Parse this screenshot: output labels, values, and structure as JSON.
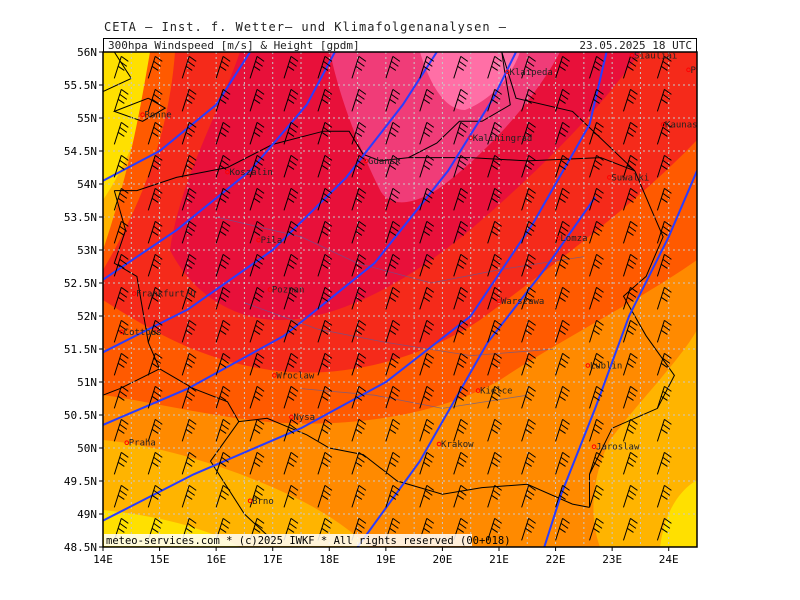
{
  "title": "CETA — Inst. f. Wetter— und Klimafolgenanalysen —",
  "header": {
    "parameter": "300hpa Windspeed [m/s] & Height [gpdm]",
    "datetime": "23.05.2025 18 UTC"
  },
  "footer": "meteo-services.com * (c)2025 IWKF * All rights reserved (00+018)",
  "map": {
    "lon_range": [
      14,
      24.5
    ],
    "lat_range": [
      48.5,
      56
    ],
    "lon_ticks": [
      "14E",
      "15E",
      "16E",
      "17E",
      "18E",
      "19E",
      "20E",
      "21E",
      "22E",
      "23E",
      "24E"
    ],
    "lat_ticks": [
      "48.5N",
      "49N",
      "49.5N",
      "50N",
      "50.5N",
      "51N",
      "51.5N",
      "52N",
      "52.5N",
      "53N",
      "53.5N",
      "54N",
      "54.5N",
      "55N",
      "55.5N",
      "56N"
    ],
    "grid_lines": true,
    "colors": {
      "background": "#ffffff",
      "band_10_20": "#ffe000",
      "band_20_30": "#ffb400",
      "band_30_40": "#ff8a00",
      "band_40_50": "#ff5a00",
      "band_50_60": "#f52a1a",
      "band_60_70": "#e8103a",
      "band_70_80": "#f03c78",
      "band_80_plus": "#ff6fa6",
      "height_contours": "#2a3cff",
      "borders": "#000000",
      "wind_barbs": "#000000",
      "city_marker": "#ff0000"
    },
    "cities": [
      {
        "name": "Ronne",
        "lon": 14.7,
        "lat": 55.05
      },
      {
        "name": "Klaipeda",
        "lon": 21.15,
        "lat": 55.7
      },
      {
        "name": "Siauliai",
        "lon": 23.35,
        "lat": 55.95
      },
      {
        "name": "Panevezys",
        "lon": 24.35,
        "lat": 55.73
      },
      {
        "name": "Kaunas",
        "lon": 23.9,
        "lat": 54.9
      },
      {
        "name": "Kaliningrad",
        "lon": 20.5,
        "lat": 54.7
      },
      {
        "name": "Gdansk",
        "lon": 18.65,
        "lat": 54.35
      },
      {
        "name": "Koszalin",
        "lon": 16.2,
        "lat": 54.18
      },
      {
        "name": "Suwalki",
        "lon": 22.95,
        "lat": 54.1
      },
      {
        "name": "Lomza",
        "lon": 22.05,
        "lat": 53.18
      },
      {
        "name": "Pila",
        "lon": 16.75,
        "lat": 53.15
      },
      {
        "name": "Poznan",
        "lon": 16.95,
        "lat": 52.4
      },
      {
        "name": "Warszawa",
        "lon": 21.0,
        "lat": 52.23
      },
      {
        "name": "Frankfurt/O",
        "lon": 14.55,
        "lat": 52.34
      },
      {
        "name": "Cottbus",
        "lon": 14.33,
        "lat": 51.76
      },
      {
        "name": "Lublin",
        "lon": 22.57,
        "lat": 51.25
      },
      {
        "name": "Wroclaw",
        "lon": 17.03,
        "lat": 51.1
      },
      {
        "name": "Kielce",
        "lon": 20.63,
        "lat": 50.87
      },
      {
        "name": "Nysa",
        "lon": 17.33,
        "lat": 50.47
      },
      {
        "name": "Praha",
        "lon": 14.42,
        "lat": 50.08
      },
      {
        "name": "Krakow",
        "lon": 19.94,
        "lat": 50.06
      },
      {
        "name": "Jaroslaw",
        "lon": 22.68,
        "lat": 50.02
      },
      {
        "name": "Brno",
        "lon": 16.6,
        "lat": 49.2
      }
    ]
  }
}
